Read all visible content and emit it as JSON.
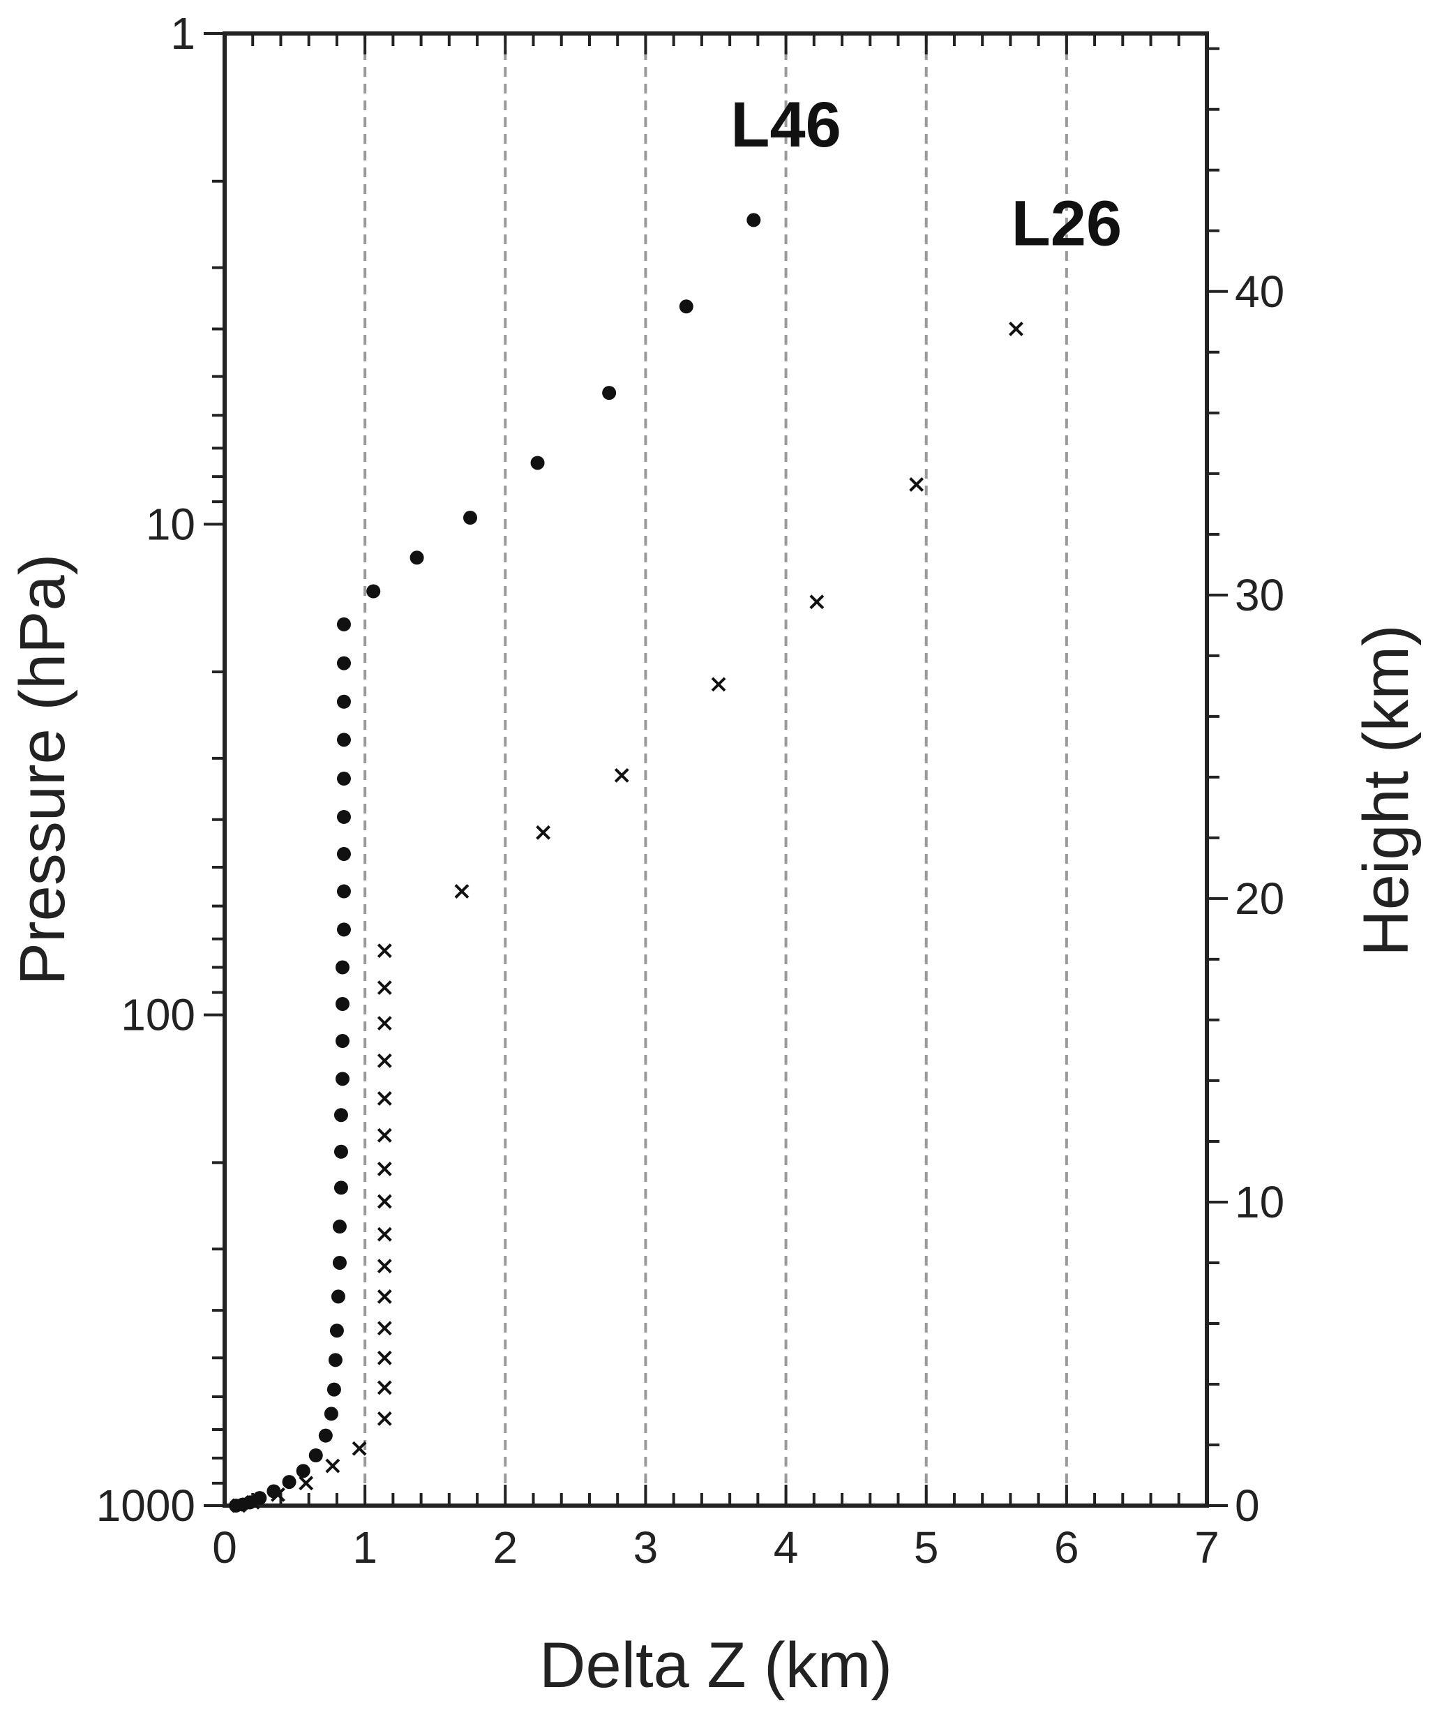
{
  "chart_data": {
    "type": "scatter",
    "xlabel": "Delta Z (km)",
    "ylabel": "Pressure (hPa)",
    "y2label": "Height (km)",
    "xlim": [
      0,
      7
    ],
    "xticks": [
      0,
      1,
      2,
      3,
      4,
      5,
      6,
      7
    ],
    "xtick_labels": [
      "0",
      "1",
      "2",
      "3",
      "4",
      "5",
      "6",
      "7"
    ],
    "yscale": "log",
    "ylim": [
      1000,
      1
    ],
    "yticks": [
      1,
      10,
      100,
      1000
    ],
    "ytick_labels": [
      "1",
      "10",
      "100",
      "1000"
    ],
    "y2lim": [
      0,
      48.5
    ],
    "y2ticks": [
      0,
      10,
      20,
      30,
      40
    ],
    "y2tick_labels": [
      "0",
      "10",
      "20",
      "30",
      "40"
    ],
    "grid": "vertical dashed at x = 1 to 6",
    "series": [
      {
        "name": "L46",
        "marker": "dot",
        "color": "#111111",
        "label_position": [
          4.0,
          1.7
        ],
        "points": [
          [
            0.08,
            1000
          ],
          [
            0.13,
            995
          ],
          [
            0.18,
            985
          ],
          [
            0.25,
            965
          ],
          [
            0.35,
            935
          ],
          [
            0.46,
            895
          ],
          [
            0.56,
            850
          ],
          [
            0.65,
            790
          ],
          [
            0.72,
            720
          ],
          [
            0.76,
            650
          ],
          [
            0.78,
            580
          ],
          [
            0.79,
            505
          ],
          [
            0.8,
            440
          ],
          [
            0.81,
            375
          ],
          [
            0.82,
            320
          ],
          [
            0.82,
            270
          ],
          [
            0.83,
            225
          ],
          [
            0.83,
            190
          ],
          [
            0.83,
            160
          ],
          [
            0.84,
            135
          ],
          [
            0.84,
            113
          ],
          [
            0.84,
            95
          ],
          [
            0.84,
            80
          ],
          [
            0.85,
            67
          ],
          [
            0.85,
            56
          ],
          [
            0.85,
            47
          ],
          [
            0.85,
            39.5
          ],
          [
            0.85,
            33
          ],
          [
            0.85,
            27.5
          ],
          [
            0.85,
            23
          ],
          [
            0.85,
            19.2
          ],
          [
            0.85,
            16
          ],
          [
            1.06,
            13.7
          ],
          [
            1.37,
            11.7
          ],
          [
            1.75,
            9.7
          ],
          [
            2.23,
            7.5
          ],
          [
            2.74,
            5.4
          ],
          [
            3.29,
            3.6
          ],
          [
            3.77,
            2.4
          ]
        ]
      },
      {
        "name": "L26",
        "marker": "cross",
        "color": "#111111",
        "label_position": [
          6.0,
          2.7
        ],
        "points": [
          [
            0.1,
            1000
          ],
          [
            0.2,
            985
          ],
          [
            0.38,
            950
          ],
          [
            0.58,
            900
          ],
          [
            0.77,
            830
          ],
          [
            0.96,
            765
          ],
          [
            1.14,
            665
          ],
          [
            1.14,
            575
          ],
          [
            1.14,
            500
          ],
          [
            1.14,
            435
          ],
          [
            1.14,
            375
          ],
          [
            1.14,
            325
          ],
          [
            1.14,
            280
          ],
          [
            1.14,
            240
          ],
          [
            1.14,
            206
          ],
          [
            1.14,
            176
          ],
          [
            1.14,
            148
          ],
          [
            1.14,
            124
          ],
          [
            1.14,
            104
          ],
          [
            1.14,
            88
          ],
          [
            1.14,
            74
          ],
          [
            1.69,
            56
          ],
          [
            2.27,
            42.5
          ],
          [
            2.83,
            32.5
          ],
          [
            3.52,
            21.2
          ],
          [
            4.22,
            14.4
          ],
          [
            4.93,
            8.3
          ],
          [
            5.64,
            4.0
          ]
        ]
      }
    ]
  }
}
